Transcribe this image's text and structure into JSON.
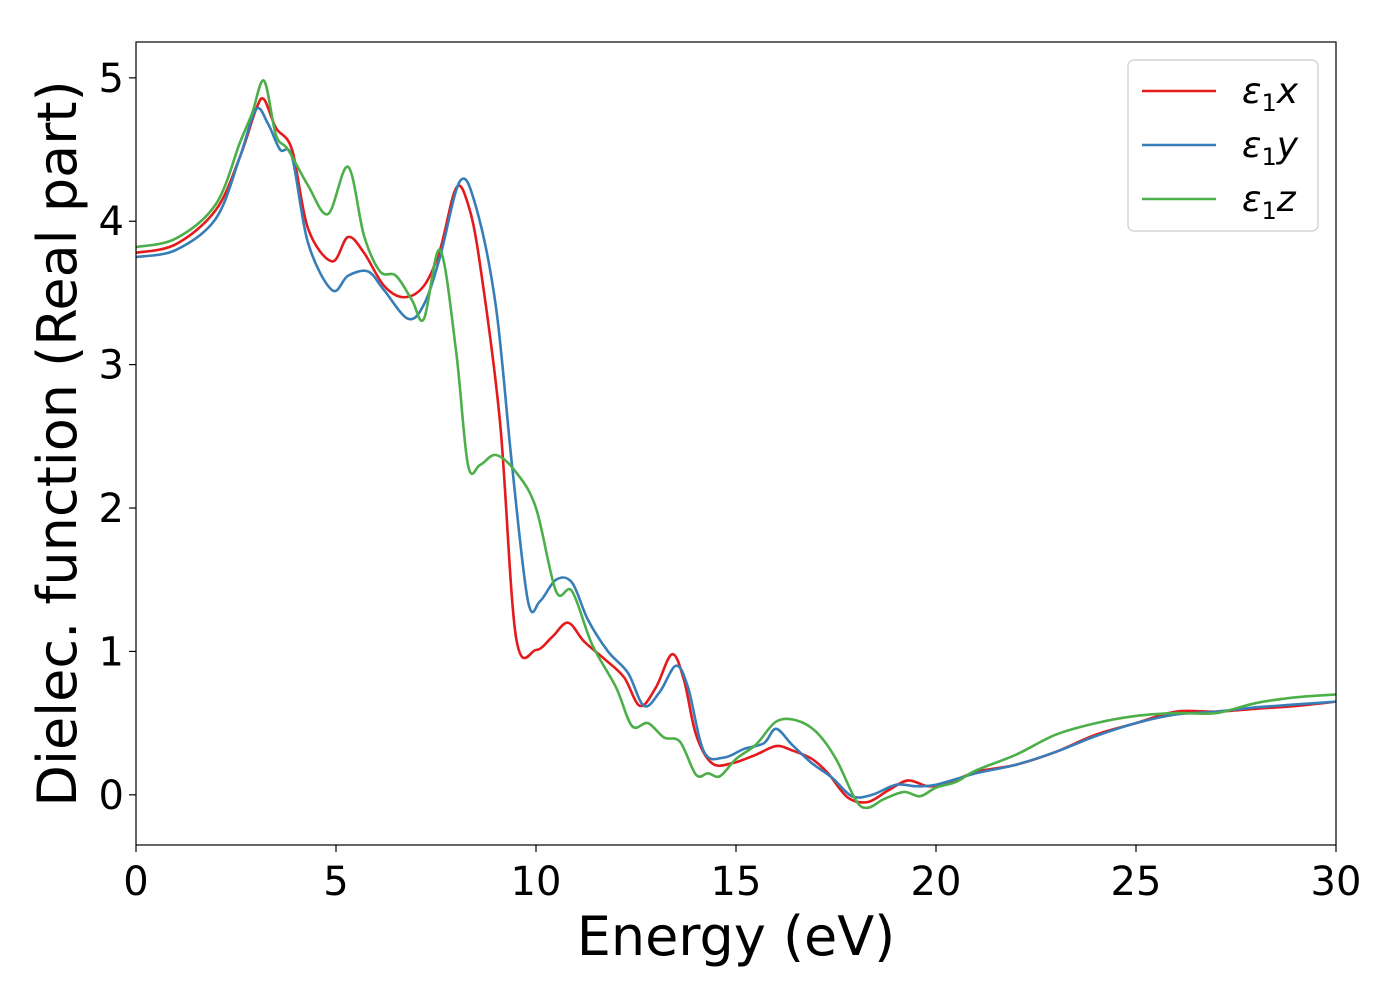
{
  "chart_data": {
    "type": "line",
    "xlabel": "Energy (eV)",
    "ylabel": "Dielec. function (Real part)",
    "xlim": [
      0,
      30
    ],
    "ylim": [
      -0.35,
      5.25
    ],
    "xticks": [
      0,
      5,
      10,
      15,
      20,
      25,
      30
    ],
    "yticks": [
      0,
      1,
      2,
      3,
      4,
      5
    ],
    "grid": false,
    "legend_position": "top-right",
    "series": [
      {
        "name": "ε₁x",
        "legend_base": "ε",
        "legend_sub": "1",
        "legend_var": "x",
        "color": "#e41a1c",
        "x": [
          0,
          1,
          2,
          2.6,
          3.0,
          3.2,
          3.5,
          3.9,
          4.3,
          4.9,
          5.3,
          5.7,
          6.2,
          6.7,
          7.2,
          7.6,
          8.0,
          8.3,
          8.6,
          9.1,
          9.5,
          10.0,
          10.4,
          10.8,
          11.2,
          11.7,
          12.2,
          12.6,
          13.0,
          13.4,
          13.7,
          14.0,
          14.4,
          14.9,
          15.5,
          16.0,
          16.4,
          16.9,
          17.3,
          17.8,
          18.3,
          18.8,
          19.3,
          19.8,
          20.3,
          21.0,
          22.0,
          23.0,
          24.0,
          25.0,
          26.0,
          27.0,
          28.0,
          29.0,
          30.0
        ],
        "values": [
          3.78,
          3.84,
          4.08,
          4.45,
          4.78,
          4.85,
          4.65,
          4.5,
          3.95,
          3.72,
          3.89,
          3.78,
          3.55,
          3.47,
          3.55,
          3.8,
          4.23,
          4.12,
          3.7,
          2.6,
          1.1,
          1.01,
          1.1,
          1.2,
          1.07,
          0.95,
          0.82,
          0.62,
          0.75,
          0.98,
          0.8,
          0.42,
          0.22,
          0.22,
          0.28,
          0.34,
          0.31,
          0.25,
          0.15,
          -0.02,
          -0.05,
          0.03,
          0.1,
          0.06,
          0.08,
          0.16,
          0.21,
          0.3,
          0.42,
          0.5,
          0.58,
          0.58,
          0.6,
          0.62,
          0.65
        ]
      },
      {
        "name": "ε₁y",
        "legend_base": "ε",
        "legend_sub": "1",
        "legend_var": "y",
        "color": "#377eb8",
        "x": [
          0,
          1,
          2,
          2.6,
          3.0,
          3.3,
          3.6,
          3.9,
          4.3,
          4.9,
          5.3,
          5.8,
          6.2,
          6.8,
          7.2,
          7.6,
          8.1,
          8.5,
          9.0,
          9.4,
          9.8,
          10.1,
          10.5,
          10.9,
          11.3,
          11.8,
          12.3,
          12.7,
          13.1,
          13.5,
          13.8,
          14.2,
          14.7,
          15.2,
          15.7,
          16.0,
          16.4,
          16.9,
          17.4,
          17.9,
          18.4,
          19.0,
          19.5,
          20.0,
          21.0,
          22.0,
          23.0,
          24.0,
          25.0,
          26.0,
          27.0,
          28.0,
          29.0,
          30.0
        ],
        "values": [
          3.75,
          3.8,
          4.02,
          4.45,
          4.78,
          4.68,
          4.5,
          4.45,
          3.85,
          3.52,
          3.62,
          3.65,
          3.52,
          3.32,
          3.42,
          3.75,
          4.28,
          4.1,
          3.4,
          2.3,
          1.35,
          1.35,
          1.5,
          1.48,
          1.22,
          1.0,
          0.85,
          0.62,
          0.72,
          0.9,
          0.75,
          0.3,
          0.26,
          0.32,
          0.36,
          0.46,
          0.35,
          0.22,
          0.12,
          -0.01,
          0.0,
          0.07,
          0.06,
          0.07,
          0.15,
          0.21,
          0.3,
          0.41,
          0.5,
          0.56,
          0.58,
          0.61,
          0.63,
          0.65
        ]
      },
      {
        "name": "ε₁z",
        "legend_base": "ε",
        "legend_sub": "1",
        "legend_var": "z",
        "color": "#4daf4a",
        "x": [
          0,
          1,
          2,
          2.6,
          2.9,
          3.2,
          3.5,
          3.8,
          4.3,
          4.8,
          5.3,
          5.7,
          6.1,
          6.5,
          6.9,
          7.2,
          7.6,
          8.0,
          8.3,
          8.6,
          9.0,
          9.5,
          10.0,
          10.5,
          10.9,
          11.4,
          12.0,
          12.4,
          12.8,
          13.2,
          13.6,
          14.0,
          14.3,
          14.6,
          15.0,
          15.5,
          16.0,
          16.5,
          17.0,
          17.5,
          18.0,
          18.3,
          18.7,
          19.2,
          19.6,
          20.0,
          20.5,
          21.0,
          22.0,
          23.0,
          24.0,
          25.0,
          26.0,
          27.0,
          28.0,
          29.0,
          30.0
        ],
        "values": [
          3.82,
          3.88,
          4.12,
          4.55,
          4.75,
          4.98,
          4.6,
          4.5,
          4.25,
          4.05,
          4.38,
          3.9,
          3.65,
          3.62,
          3.45,
          3.32,
          3.8,
          3.1,
          2.3,
          2.3,
          2.37,
          2.25,
          2.0,
          1.42,
          1.42,
          1.05,
          0.75,
          0.48,
          0.5,
          0.4,
          0.37,
          0.14,
          0.15,
          0.13,
          0.25,
          0.35,
          0.51,
          0.52,
          0.44,
          0.25,
          -0.04,
          -0.09,
          -0.03,
          0.02,
          -0.01,
          0.05,
          0.09,
          0.17,
          0.28,
          0.42,
          0.5,
          0.55,
          0.57,
          0.57,
          0.64,
          0.68,
          0.7
        ]
      }
    ]
  }
}
